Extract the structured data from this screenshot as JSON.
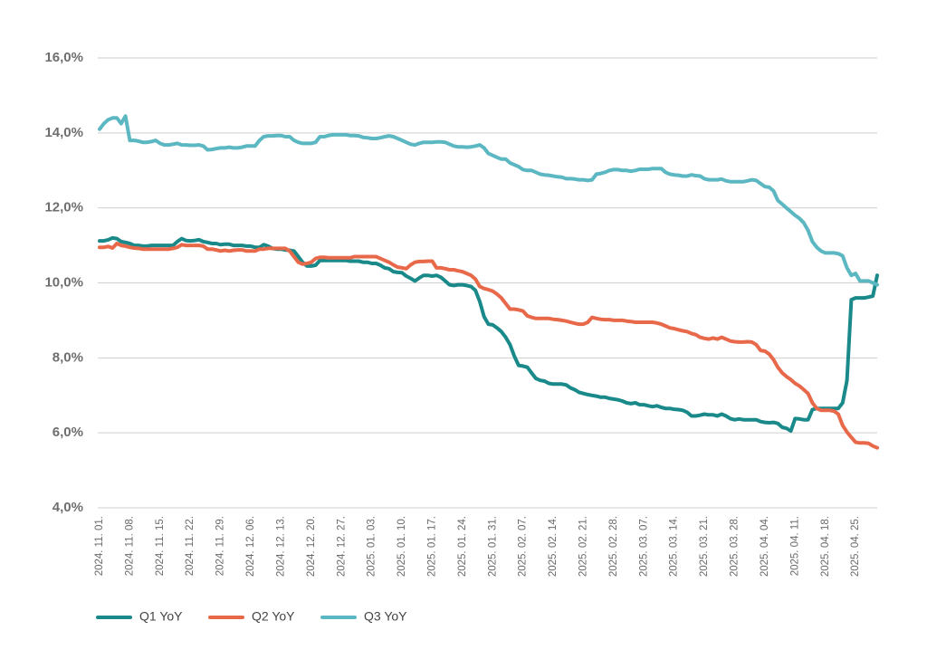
{
  "chart_data": {
    "type": "line",
    "categories": [
      "2024. 11. 01.",
      null,
      null,
      null,
      null,
      null,
      null,
      "2024. 11. 08.",
      null,
      null,
      null,
      null,
      null,
      null,
      "2024. 11. 15.",
      null,
      null,
      null,
      null,
      null,
      null,
      "2024. 11. 22.",
      null,
      null,
      null,
      null,
      null,
      null,
      "2024. 11. 29.",
      null,
      null,
      null,
      null,
      null,
      null,
      "2024. 12. 06.",
      null,
      null,
      null,
      null,
      null,
      null,
      "2024. 12. 13.",
      null,
      null,
      null,
      null,
      null,
      null,
      "2024. 12. 20.",
      null,
      null,
      null,
      null,
      null,
      null,
      "2024. 12. 27.",
      null,
      null,
      null,
      null,
      null,
      null,
      "2025. 01. 03.",
      null,
      null,
      null,
      null,
      null,
      null,
      "2025. 01. 10.",
      null,
      null,
      null,
      null,
      null,
      null,
      "2025. 01. 17.",
      null,
      null,
      null,
      null,
      null,
      null,
      "2025. 01. 24.",
      null,
      null,
      null,
      null,
      null,
      null,
      "2025. 01. 31.",
      null,
      null,
      null,
      null,
      null,
      null,
      "2025. 02. 07.",
      null,
      null,
      null,
      null,
      null,
      null,
      "2025. 02. 14.",
      null,
      null,
      null,
      null,
      null,
      null,
      "2025. 02. 21.",
      null,
      null,
      null,
      null,
      null,
      null,
      "2025. 02. 28.",
      null,
      null,
      null,
      null,
      null,
      null,
      "2025. 03. 07.",
      null,
      null,
      null,
      null,
      null,
      null,
      "2025. 03. 14.",
      null,
      null,
      null,
      null,
      null,
      null,
      "2025. 03. 21.",
      null,
      null,
      null,
      null,
      null,
      null,
      "2025. 03. 28.",
      null,
      null,
      null,
      null,
      null,
      null,
      "2025. 04. 04.",
      null,
      null,
      null,
      null,
      null,
      null,
      "2025. 04. 11.",
      null,
      null,
      null,
      null,
      null,
      null,
      "2025. 04. 18.",
      null,
      null,
      null,
      null,
      null,
      null,
      "2025. 04. 25.",
      null,
      null,
      null,
      null,
      null
    ],
    "series": [
      {
        "name": "Q1 YoY",
        "color": "#19898a",
        "values": [
          11.12,
          11.12,
          11.15,
          11.2,
          11.18,
          11.1,
          11.08,
          11.05,
          11.0,
          11.0,
          10.98,
          10.98,
          11.0,
          11.0,
          11.0,
          11.0,
          11.0,
          11.0,
          11.1,
          11.18,
          11.13,
          11.12,
          11.13,
          11.15,
          11.1,
          11.08,
          11.05,
          11.05,
          11.02,
          11.03,
          11.03,
          11.0,
          11.0,
          11.0,
          10.98,
          10.98,
          10.95,
          10.95,
          11.02,
          10.98,
          10.92,
          10.9,
          10.9,
          10.88,
          10.87,
          10.85,
          10.7,
          10.55,
          10.45,
          10.45,
          10.47,
          10.6,
          10.6,
          10.6,
          10.6,
          10.6,
          10.6,
          10.6,
          10.58,
          10.58,
          10.58,
          10.55,
          10.55,
          10.52,
          10.52,
          10.47,
          10.4,
          10.38,
          10.3,
          10.28,
          10.27,
          10.18,
          10.12,
          10.05,
          10.13,
          10.2,
          10.2,
          10.18,
          10.2,
          10.15,
          10.05,
          9.95,
          9.93,
          9.95,
          9.95,
          9.93,
          9.9,
          9.8,
          9.5,
          9.1,
          8.9,
          8.88,
          8.8,
          8.7,
          8.55,
          8.35,
          8.05,
          7.8,
          7.78,
          7.75,
          7.6,
          7.45,
          7.4,
          7.38,
          7.32,
          7.3,
          7.3,
          7.3,
          7.28,
          7.2,
          7.15,
          7.08,
          7.05,
          7.02,
          7.0,
          6.98,
          6.95,
          6.95,
          6.92,
          6.9,
          6.88,
          6.85,
          6.8,
          6.78,
          6.8,
          6.75,
          6.75,
          6.72,
          6.7,
          6.72,
          6.68,
          6.65,
          6.65,
          6.63,
          6.62,
          6.6,
          6.55,
          6.45,
          6.45,
          6.47,
          6.5,
          6.48,
          6.48,
          6.45,
          6.5,
          6.45,
          6.38,
          6.35,
          6.37,
          6.35,
          6.35,
          6.35,
          6.35,
          6.3,
          6.28,
          6.27,
          6.28,
          6.25,
          6.15,
          6.12,
          6.05,
          6.38,
          6.37,
          6.35,
          6.35,
          6.62,
          6.65,
          6.65,
          6.65,
          6.65,
          6.65,
          6.65,
          6.8,
          7.4,
          9.55,
          9.6,
          9.6,
          9.6,
          9.62,
          9.65,
          10.2
        ]
      },
      {
        "name": "Q2 YoY",
        "color": "#e8694a",
        "values": [
          10.95,
          10.95,
          10.97,
          10.93,
          11.05,
          11.0,
          10.98,
          10.95,
          10.93,
          10.92,
          10.9,
          10.9,
          10.9,
          10.9,
          10.9,
          10.9,
          10.9,
          10.92,
          10.95,
          11.02,
          11.0,
          11.0,
          11.0,
          11.0,
          10.98,
          10.9,
          10.9,
          10.88,
          10.85,
          10.87,
          10.85,
          10.87,
          10.88,
          10.88,
          10.85,
          10.85,
          10.85,
          10.9,
          10.9,
          10.92,
          10.92,
          10.92,
          10.92,
          10.92,
          10.85,
          10.7,
          10.55,
          10.5,
          10.52,
          10.55,
          10.65,
          10.68,
          10.68,
          10.67,
          10.67,
          10.67,
          10.67,
          10.67,
          10.67,
          10.7,
          10.7,
          10.7,
          10.7,
          10.7,
          10.7,
          10.65,
          10.6,
          10.55,
          10.48,
          10.42,
          10.4,
          10.38,
          10.48,
          10.55,
          10.57,
          10.57,
          10.58,
          10.58,
          10.4,
          10.4,
          10.38,
          10.35,
          10.35,
          10.32,
          10.3,
          10.25,
          10.2,
          10.1,
          9.9,
          9.85,
          9.82,
          9.78,
          9.7,
          9.6,
          9.45,
          9.3,
          9.3,
          9.28,
          9.25,
          9.12,
          9.08,
          9.05,
          9.05,
          9.05,
          9.05,
          9.03,
          9.02,
          9.0,
          8.98,
          8.95,
          8.92,
          8.9,
          8.9,
          8.95,
          9.08,
          9.05,
          9.03,
          9.02,
          9.02,
          9.0,
          9.0,
          9.0,
          8.98,
          8.97,
          8.95,
          8.95,
          8.95,
          8.95,
          8.95,
          8.93,
          8.9,
          8.85,
          8.8,
          8.78,
          8.75,
          8.72,
          8.7,
          8.65,
          8.62,
          8.55,
          8.52,
          8.5,
          8.53,
          8.5,
          8.55,
          8.5,
          8.45,
          8.43,
          8.42,
          8.42,
          8.43,
          8.42,
          8.35,
          8.2,
          8.18,
          8.1,
          7.95,
          7.75,
          7.6,
          7.5,
          7.42,
          7.32,
          7.25,
          7.15,
          7.05,
          6.8,
          6.65,
          6.6,
          6.6,
          6.6,
          6.58,
          6.5,
          6.2,
          6.02,
          5.88,
          5.75,
          5.73,
          5.73,
          5.72,
          5.65,
          5.6
        ]
      },
      {
        "name": "Q3 YoY",
        "color": "#5bb7c1",
        "values": [
          14.1,
          14.25,
          14.35,
          14.4,
          14.4,
          14.25,
          14.45,
          13.8,
          13.8,
          13.78,
          13.75,
          13.75,
          13.77,
          13.8,
          13.72,
          13.68,
          13.68,
          13.7,
          13.72,
          13.68,
          13.68,
          13.67,
          13.67,
          13.68,
          13.65,
          13.55,
          13.56,
          13.58,
          13.6,
          13.6,
          13.62,
          13.6,
          13.6,
          13.62,
          13.65,
          13.65,
          13.65,
          13.8,
          13.9,
          13.92,
          13.92,
          13.93,
          13.93,
          13.9,
          13.9,
          13.8,
          13.75,
          13.72,
          13.72,
          13.72,
          13.75,
          13.9,
          13.9,
          13.93,
          13.95,
          13.95,
          13.95,
          13.95,
          13.93,
          13.93,
          13.92,
          13.88,
          13.87,
          13.85,
          13.85,
          13.87,
          13.9,
          13.92,
          13.9,
          13.85,
          13.8,
          13.75,
          13.7,
          13.68,
          13.72,
          13.75,
          13.75,
          13.75,
          13.76,
          13.76,
          13.75,
          13.7,
          13.65,
          13.63,
          13.63,
          13.62,
          13.63,
          13.65,
          13.68,
          13.6,
          13.45,
          13.4,
          13.35,
          13.3,
          13.3,
          13.2,
          13.15,
          13.1,
          13.02,
          13.0,
          13.0,
          12.95,
          12.9,
          12.88,
          12.87,
          12.85,
          12.83,
          12.82,
          12.78,
          12.78,
          12.77,
          12.75,
          12.75,
          12.73,
          12.75,
          12.9,
          12.92,
          12.95,
          13.0,
          13.02,
          13.02,
          13.0,
          13.0,
          12.98,
          13.0,
          13.03,
          13.03,
          13.03,
          13.05,
          13.05,
          13.05,
          12.95,
          12.9,
          12.88,
          12.87,
          12.85,
          12.85,
          12.88,
          12.86,
          12.85,
          12.78,
          12.75,
          12.75,
          12.75,
          12.77,
          12.72,
          12.7,
          12.7,
          12.7,
          12.7,
          12.72,
          12.75,
          12.73,
          12.65,
          12.57,
          12.55,
          12.45,
          12.2,
          12.1,
          12.0,
          11.9,
          11.8,
          11.72,
          11.6,
          11.4,
          11.1,
          10.95,
          10.85,
          10.8,
          10.8,
          10.8,
          10.78,
          10.72,
          10.4,
          10.2,
          10.25,
          10.05,
          10.05,
          10.05,
          10.0,
          9.95
        ]
      }
    ],
    "ylim": [
      4,
      16
    ],
    "yticks": [
      {
        "value": 4,
        "label": "4,0%"
      },
      {
        "value": 6,
        "label": "6,0%"
      },
      {
        "value": 8,
        "label": "8,0%"
      },
      {
        "value": 10,
        "label": "10,0%"
      },
      {
        "value": 12,
        "label": "12,0%"
      },
      {
        "value": 14,
        "label": "14,0%"
      },
      {
        "value": 16,
        "label": "16,0%"
      }
    ],
    "grid": true,
    "legend": "bottom-left"
  }
}
